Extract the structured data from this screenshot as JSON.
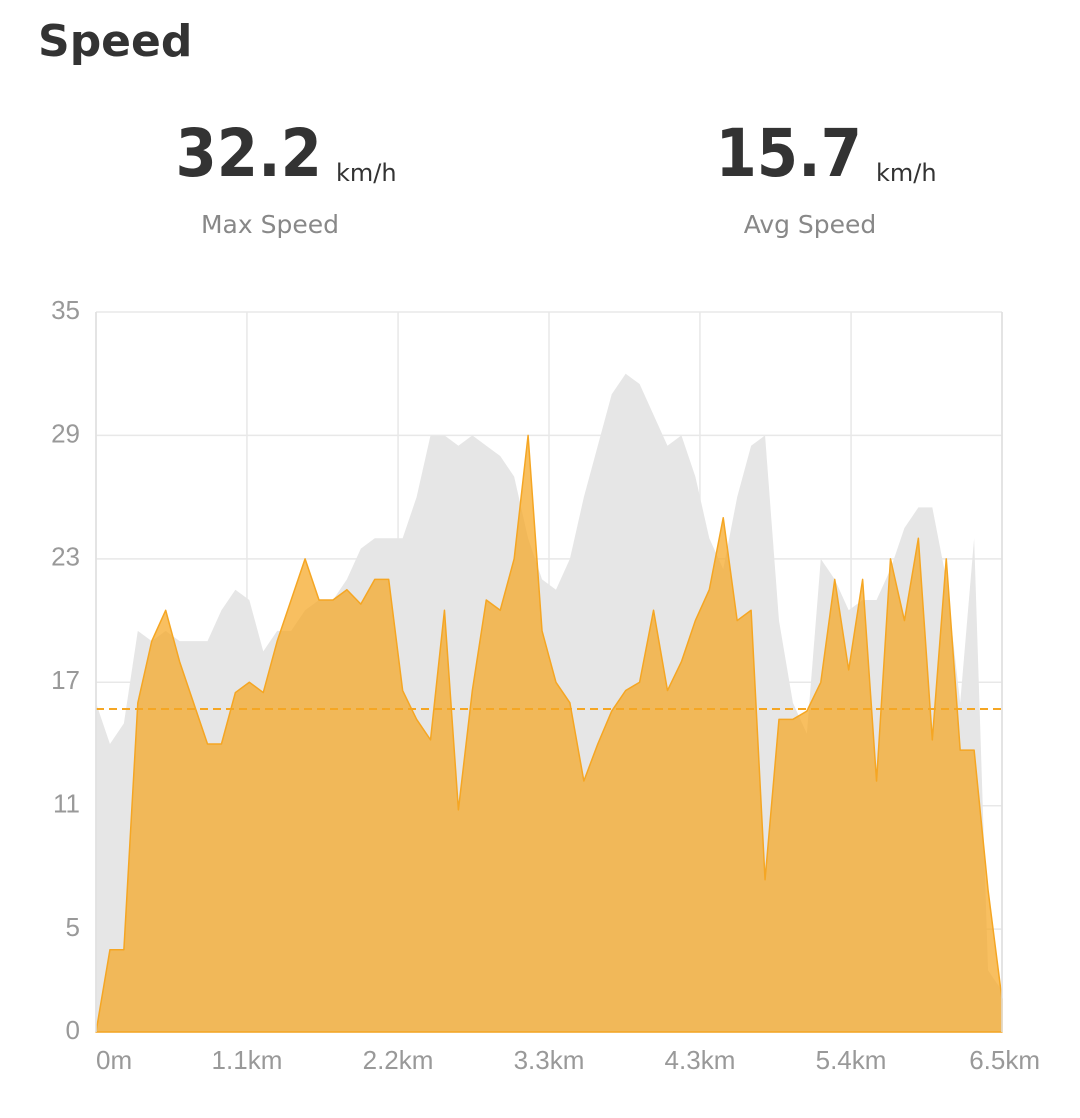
{
  "header": {
    "title": "Speed"
  },
  "stats": [
    {
      "value": 32.2,
      "unit": "km/h",
      "label": "Max Speed"
    },
    {
      "value": 15.7,
      "unit": "km/h",
      "label": "Avg Speed"
    }
  ],
  "chart_data": {
    "type": "area",
    "x": [
      0,
      0.1,
      0.2,
      0.3,
      0.4,
      0.5,
      0.6,
      0.7,
      0.8,
      0.9,
      1.0,
      1.1,
      1.2,
      1.3,
      1.4,
      1.5,
      1.6,
      1.7,
      1.8,
      1.9,
      2.0,
      2.1,
      2.2,
      2.3,
      2.4,
      2.5,
      2.6,
      2.7,
      2.8,
      2.9,
      3.0,
      3.1,
      3.2,
      3.3,
      3.4,
      3.5,
      3.6,
      3.7,
      3.8,
      3.9,
      4.0,
      4.1,
      4.2,
      4.3,
      4.4,
      4.5,
      4.6,
      4.7,
      4.8,
      4.9,
      5.0,
      5.1,
      5.2,
      5.3,
      5.4,
      5.5,
      5.6,
      5.7,
      5.8,
      5.9,
      6.0,
      6.1,
      6.2,
      6.3,
      6.4,
      6.5
    ],
    "series": [
      {
        "color": "#e6e6e6",
        "values": [
          16,
          14,
          15,
          19.5,
          19,
          19.5,
          19,
          19,
          19,
          20.5,
          21.5,
          21,
          18.5,
          19.5,
          19.5,
          20.5,
          21,
          21,
          22,
          23.5,
          24,
          24,
          24,
          26,
          29,
          29,
          28.5,
          29,
          28.5,
          28,
          27,
          24,
          22,
          21.5,
          23,
          26,
          28.5,
          31,
          32,
          31.5,
          30,
          28.5,
          29,
          27,
          24,
          22.5,
          26,
          28.5,
          29,
          20,
          16,
          14.5,
          23,
          22,
          20.5,
          21,
          21,
          22.5,
          24.5,
          25.5,
          25.5,
          22,
          16,
          24,
          3,
          2
        ]
      },
      {
        "color": "#f5a623",
        "values": [
          0,
          4,
          4,
          16,
          19,
          20.5,
          18,
          16,
          14,
          14,
          16.5,
          17,
          16.5,
          19,
          21,
          23,
          21,
          21,
          21.5,
          20.8,
          22,
          22,
          16.6,
          15.2,
          14.2,
          20.5,
          10.8,
          16.6,
          21,
          20.5,
          23,
          29,
          19.5,
          17,
          16,
          12.2,
          14,
          15.6,
          16.6,
          17,
          20.5,
          16.6,
          18,
          20,
          21.5,
          25,
          20,
          20.5,
          7.4,
          15.2,
          15.2,
          15.6,
          17,
          22,
          17.6,
          22,
          12.2,
          23,
          20,
          24,
          14.2,
          23,
          13.7,
          13.7,
          6.9,
          1.6
        ]
      }
    ],
    "xlim": [
      0,
      6.5
    ],
    "xticks": [
      {
        "value": 0,
        "label": "0m"
      },
      {
        "value": 1.083,
        "label": "1.1km"
      },
      {
        "value": 2.167,
        "label": "2.2km"
      },
      {
        "value": 3.25,
        "label": "3.3km"
      },
      {
        "value": 4.333,
        "label": "4.3km"
      },
      {
        "value": 5.417,
        "label": "5.4km"
      },
      {
        "value": 6.5,
        "label": "6.5km"
      }
    ],
    "ylim": [
      0,
      35
    ],
    "yticks": [
      0,
      5,
      11,
      17,
      23,
      29,
      35
    ],
    "grid": true
  }
}
